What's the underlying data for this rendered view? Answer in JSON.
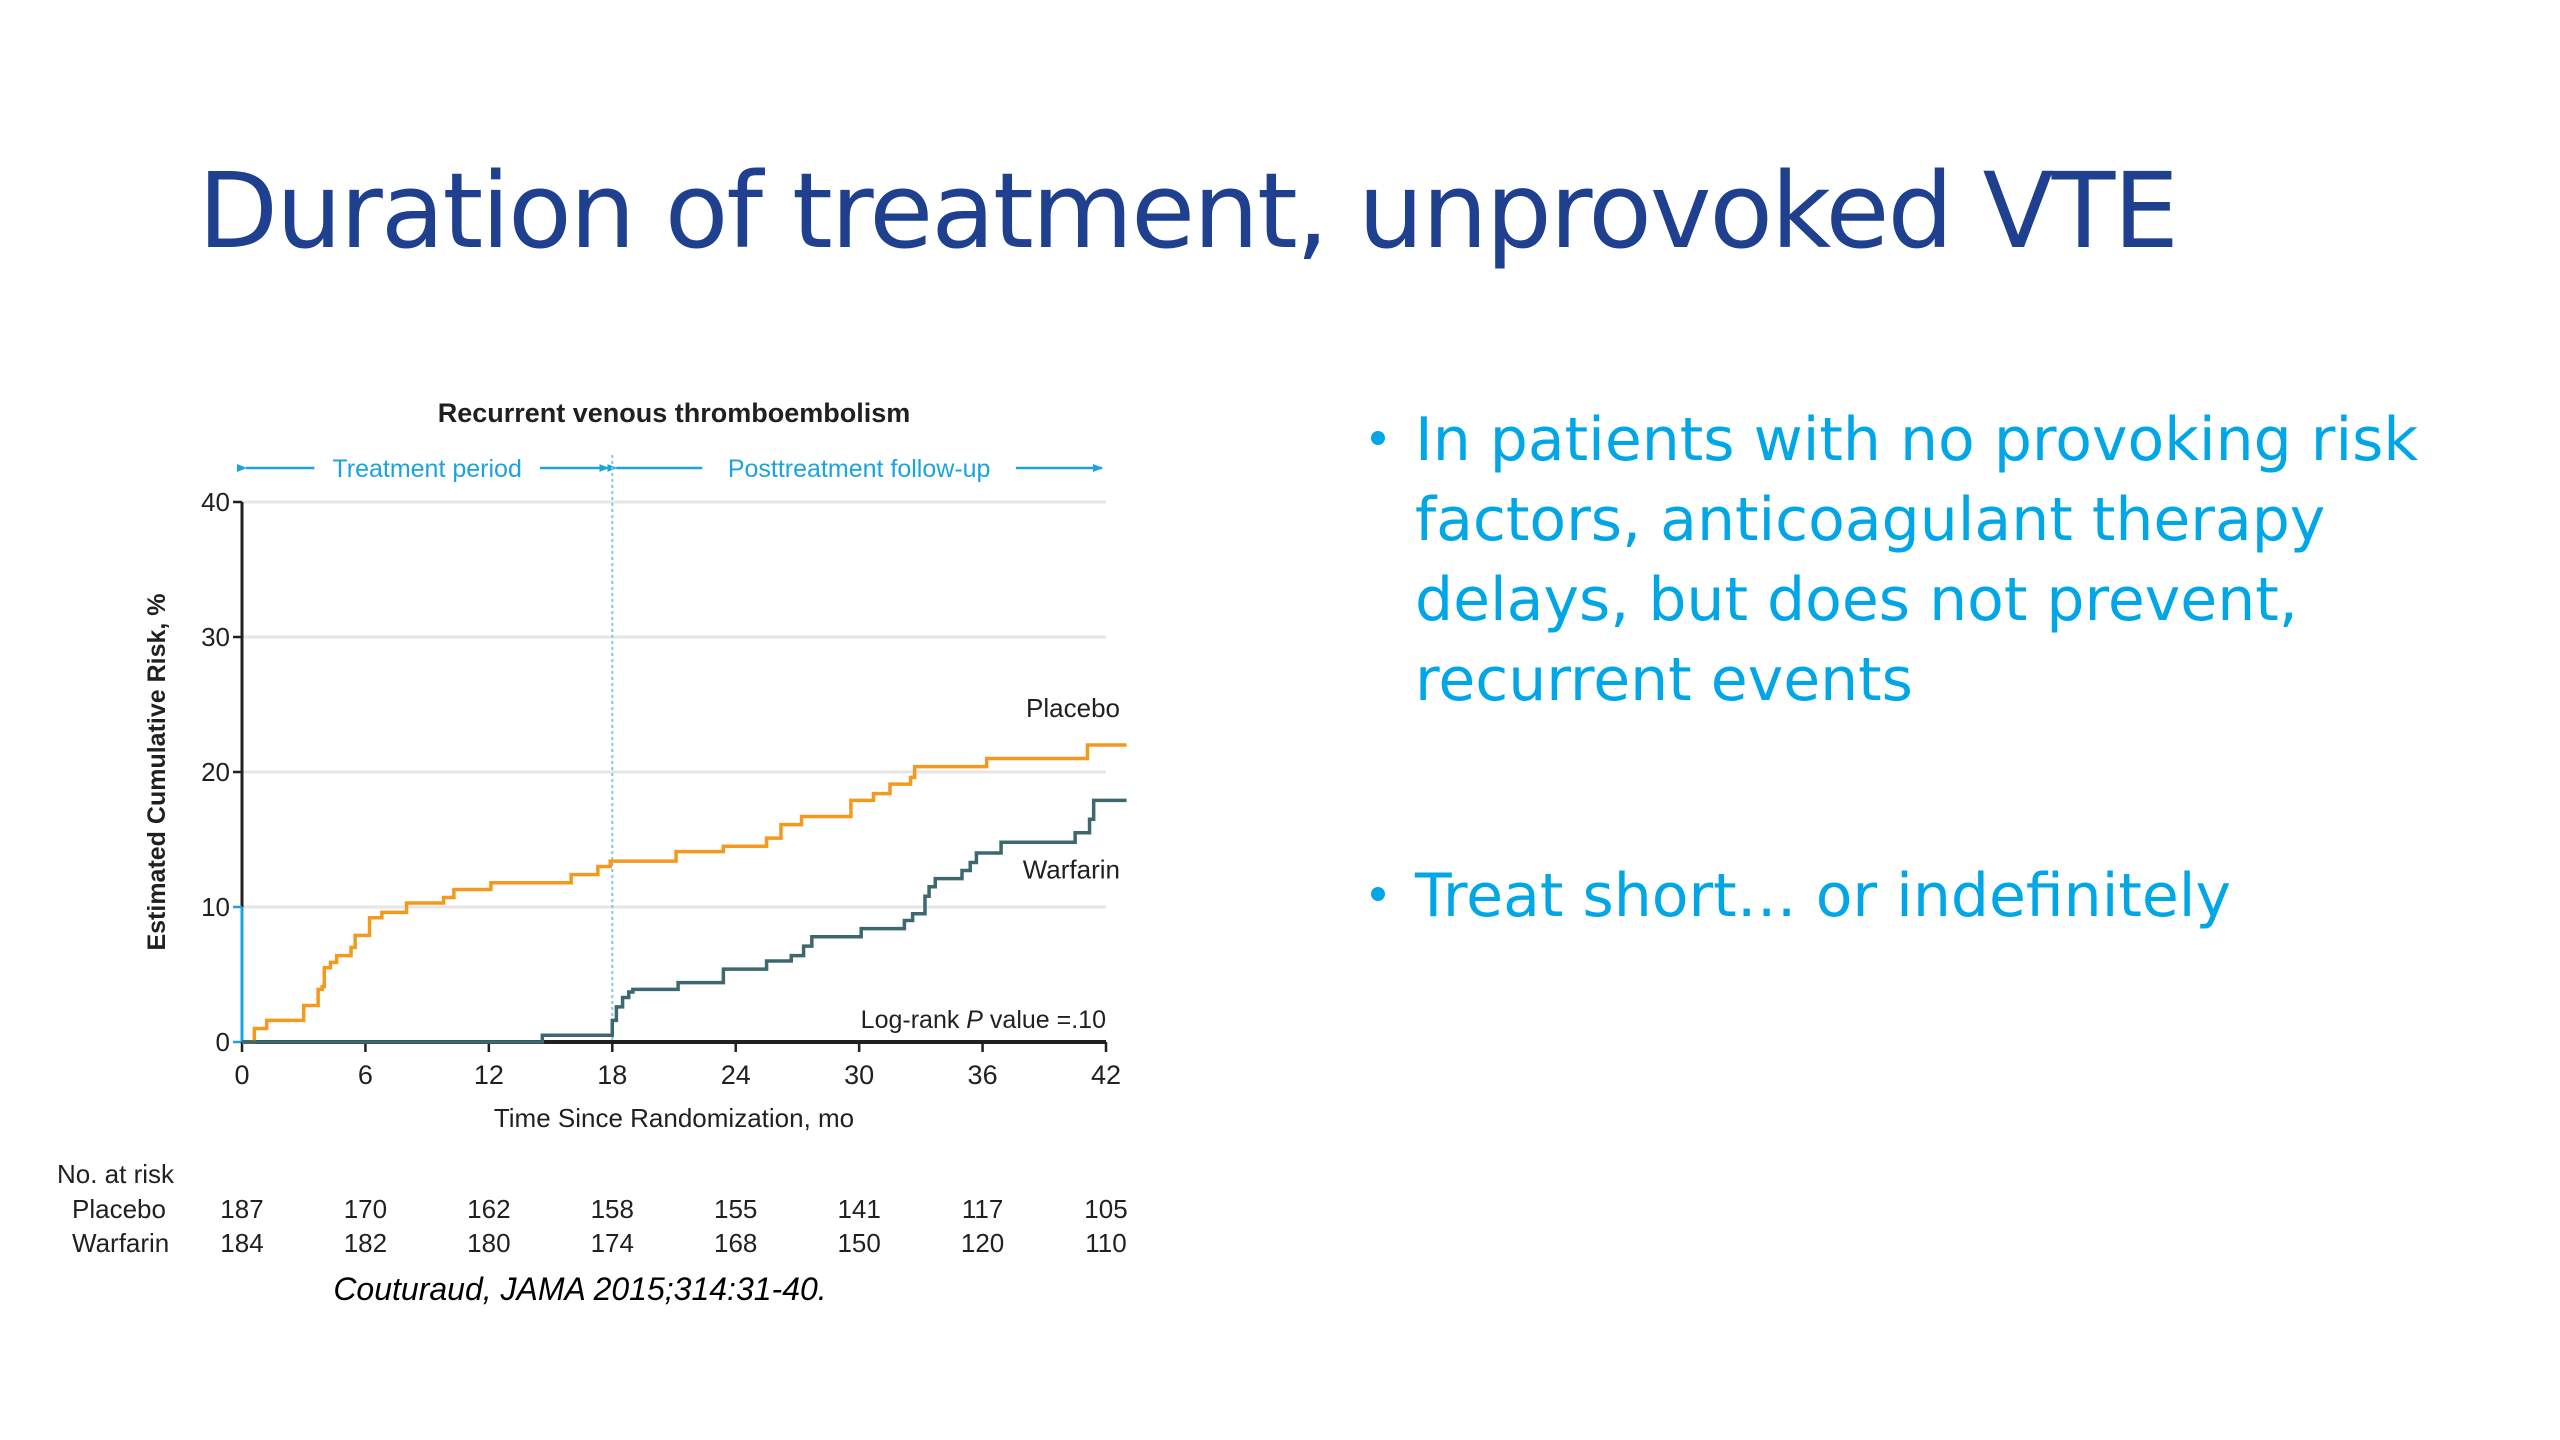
{
  "slide": {
    "title": "Duration of treatment, unprovoked VTE",
    "bullets": [
      "In patients with no provoking risk factors, anticoagulant therapy delays, but does not prevent, recurrent events",
      "Treat short… or indefinitely"
    ],
    "colors": {
      "title": "#1f3f8f",
      "bullet": "#00a6e6"
    }
  },
  "chart_data": {
    "type": "line",
    "step": true,
    "title": "Recurrent venous thromboembolism",
    "xlabel": "Time Since Randomization, mo",
    "ylabel": "Estimated Cumulative Risk, %",
    "xlim": [
      0,
      42
    ],
    "ylim": [
      0,
      40
    ],
    "xticks": [
      0,
      6,
      12,
      18,
      24,
      30,
      36,
      42
    ],
    "yticks": [
      0,
      10,
      20,
      30,
      40
    ],
    "grid": "horizontal",
    "periods": [
      {
        "label": "Treatment period",
        "from": 0,
        "to": 18
      },
      {
        "label": "Posttreatment follow-up",
        "from": 18,
        "to": 42
      }
    ],
    "divider_x": 18,
    "annotation": {
      "text_pre": "Log-rank ",
      "text_italic": "P",
      "text_post": " value =.10"
    },
    "series": [
      {
        "name": "Placebo",
        "color": "#f39a1e",
        "x": [
          0,
          0.6,
          1.2,
          3.0,
          3.7,
          3.9,
          4.0,
          4.3,
          4.6,
          5.3,
          5.5,
          6.2,
          6.8,
          8.0,
          9.8,
          10.3,
          12.1,
          16.0,
          17.3,
          17.9,
          21.1,
          23.4,
          25.5,
          26.2,
          27.2,
          29.6,
          30.7,
          31.5,
          32.5,
          32.7,
          36.2,
          41.1,
          43.0
        ],
        "y": [
          0,
          1.0,
          1.6,
          2.7,
          3.9,
          4.1,
          5.5,
          5.9,
          6.4,
          7.0,
          7.9,
          9.2,
          9.6,
          10.3,
          10.7,
          11.3,
          11.8,
          12.4,
          13.0,
          13.4,
          14.1,
          14.5,
          15.1,
          16.1,
          16.7,
          17.9,
          18.4,
          19.1,
          19.6,
          20.4,
          21.0,
          22.0,
          22.0
        ]
      },
      {
        "name": "Warfarin",
        "color": "#3d6870",
        "x": [
          0,
          14.6,
          18.0,
          18.2,
          18.5,
          18.8,
          19.0,
          21.2,
          23.4,
          25.5,
          26.7,
          27.3,
          27.7,
          30.1,
          32.2,
          32.6,
          33.2,
          33.4,
          33.7,
          35.0,
          35.4,
          35.7,
          36.9,
          40.5,
          41.2,
          41.4,
          43.0
        ],
        "y": [
          0,
          0.5,
          1.6,
          2.6,
          3.3,
          3.7,
          3.9,
          4.4,
          5.4,
          6.0,
          6.4,
          7.1,
          7.8,
          8.4,
          9.0,
          9.5,
          10.8,
          11.5,
          12.1,
          12.7,
          13.3,
          14.0,
          14.8,
          15.5,
          16.5,
          17.9,
          17.9
        ]
      }
    ],
    "risk_table": {
      "header": "No. at risk",
      "times": [
        0,
        6,
        12,
        18,
        24,
        30,
        36,
        42
      ],
      "rows": [
        {
          "label": "Placebo",
          "values": [
            187,
            170,
            162,
            158,
            155,
            141,
            117,
            105
          ]
        },
        {
          "label": "Warfarin",
          "values": [
            184,
            182,
            180,
            174,
            168,
            150,
            120,
            110
          ]
        }
      ]
    },
    "citation": "Couturaud, JAMA 2015;314:31-40.",
    "colors": {
      "axis": "#231f20",
      "axis_lower_segment": "#1aa3e0",
      "grid": "#e6e6e6",
      "period": "#1aa3e0",
      "text": "#231f20"
    }
  }
}
